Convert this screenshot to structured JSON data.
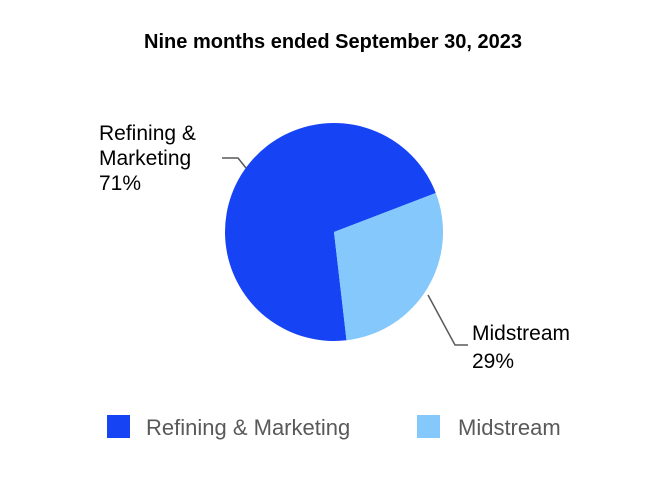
{
  "chart_data": {
    "type": "pie",
    "title": "Nine months ended September 30, 2023",
    "slices": [
      {
        "name": "Refining & Marketing",
        "value": 71,
        "value_label": "71%",
        "color": "#1644f5"
      },
      {
        "name": "Midstream",
        "value": 29,
        "value_label": "29%",
        "color": "#85c8fc"
      }
    ],
    "legend": {
      "position": "bottom",
      "items": [
        "Refining & Marketing",
        "Midstream"
      ]
    }
  }
}
